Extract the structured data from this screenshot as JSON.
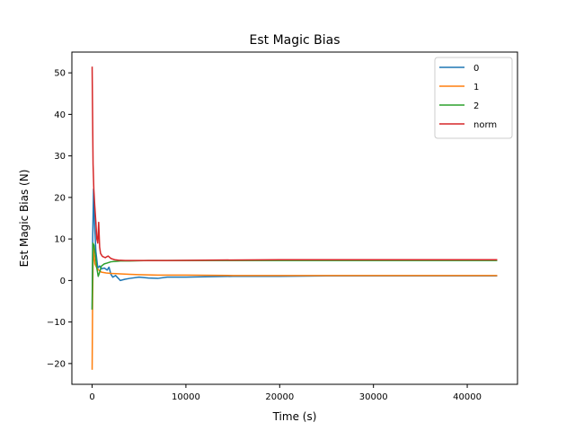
{
  "chart_data": {
    "type": "line",
    "title": "Est Magic Bias",
    "xlabel": "Time (s)",
    "ylabel": "Est Magic Bias (N)",
    "xlim": [
      -2160,
      45360
    ],
    "ylim": [
      -25,
      55
    ],
    "xticks": [
      0,
      10000,
      20000,
      30000,
      40000
    ],
    "yticks": [
      -20,
      -10,
      0,
      10,
      20,
      30,
      40,
      50
    ],
    "grid": false,
    "legend_position": "top-right",
    "series": [
      {
        "name": "0",
        "color": "#1f77b4",
        "points": [
          [
            0,
            -7
          ],
          [
            60,
            10
          ],
          [
            150,
            22
          ],
          [
            250,
            14
          ],
          [
            400,
            7
          ],
          [
            600,
            3
          ],
          [
            800,
            3.5
          ],
          [
            1000,
            2.8
          ],
          [
            1300,
            3
          ],
          [
            1600,
            2.5
          ],
          [
            1800,
            3.2
          ],
          [
            2000,
            1.5
          ],
          [
            2200,
            0.8
          ],
          [
            2500,
            1.2
          ],
          [
            2800,
            0.5
          ],
          [
            3000,
            0
          ],
          [
            3500,
            0.3
          ],
          [
            4000,
            0.5
          ],
          [
            5000,
            0.8
          ],
          [
            6000,
            0.6
          ],
          [
            7000,
            0.5
          ],
          [
            8000,
            0.8
          ],
          [
            10000,
            0.8
          ],
          [
            12000,
            0.9
          ],
          [
            15000,
            1.0
          ],
          [
            20000,
            1.0
          ],
          [
            25000,
            1.1
          ],
          [
            30000,
            1.1
          ],
          [
            35000,
            1.1
          ],
          [
            40000,
            1.1
          ],
          [
            43200,
            1.1
          ]
        ]
      },
      {
        "name": "1",
        "color": "#ff7f0e",
        "points": [
          [
            0,
            -21.5
          ],
          [
            50,
            -5
          ],
          [
            120,
            8
          ],
          [
            200,
            6
          ],
          [
            300,
            4
          ],
          [
            500,
            3
          ],
          [
            700,
            2.5
          ],
          [
            1000,
            2
          ],
          [
            1500,
            1.8
          ],
          [
            2000,
            1.7
          ],
          [
            3000,
            1.6
          ],
          [
            4000,
            1.5
          ],
          [
            5000,
            1.4
          ],
          [
            7000,
            1.3
          ],
          [
            10000,
            1.3
          ],
          [
            15000,
            1.2
          ],
          [
            20000,
            1.2
          ],
          [
            30000,
            1.2
          ],
          [
            40000,
            1.2
          ],
          [
            43200,
            1.2
          ]
        ]
      },
      {
        "name": "2",
        "color": "#2ca02c",
        "points": [
          [
            0,
            -7
          ],
          [
            80,
            9
          ],
          [
            200,
            8.5
          ],
          [
            350,
            6
          ],
          [
            500,
            3
          ],
          [
            650,
            1
          ],
          [
            800,
            2
          ],
          [
            1000,
            3.5
          ],
          [
            1300,
            4
          ],
          [
            1600,
            4.2
          ],
          [
            2000,
            4.5
          ],
          [
            2500,
            4.6
          ],
          [
            3000,
            4.7
          ],
          [
            4000,
            4.7
          ],
          [
            6000,
            4.8
          ],
          [
            10000,
            4.8
          ],
          [
            20000,
            4.8
          ],
          [
            30000,
            4.8
          ],
          [
            43200,
            4.8
          ]
        ]
      },
      {
        "name": "norm",
        "color": "#d62728",
        "points": [
          [
            0,
            51.5
          ],
          [
            40,
            42
          ],
          [
            100,
            28
          ],
          [
            180,
            22
          ],
          [
            280,
            18
          ],
          [
            400,
            14
          ],
          [
            500,
            10
          ],
          [
            600,
            9
          ],
          [
            700,
            14
          ],
          [
            800,
            8
          ],
          [
            900,
            6.5
          ],
          [
            1100,
            5.8
          ],
          [
            1400,
            5.5
          ],
          [
            1700,
            5.9
          ],
          [
            2000,
            5.3
          ],
          [
            2400,
            5.0
          ],
          [
            2800,
            4.9
          ],
          [
            3500,
            4.8
          ],
          [
            5000,
            4.8
          ],
          [
            8000,
            4.8
          ],
          [
            12000,
            4.9
          ],
          [
            20000,
            5.0
          ],
          [
            30000,
            5.0
          ],
          [
            43200,
            5.0
          ]
        ]
      }
    ]
  }
}
